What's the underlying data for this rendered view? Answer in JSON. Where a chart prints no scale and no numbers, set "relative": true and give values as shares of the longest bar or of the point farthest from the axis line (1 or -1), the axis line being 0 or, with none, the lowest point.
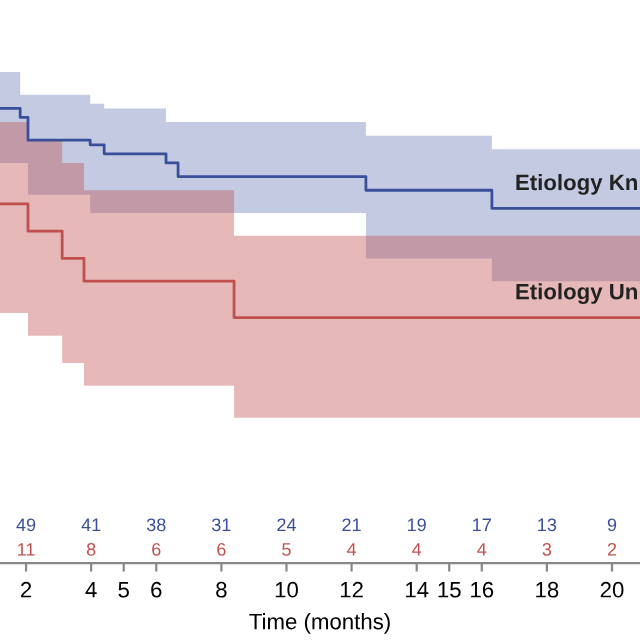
{
  "chart_data": {
    "type": "line",
    "relative": true,
    "xlabel": "Time (months)",
    "xlim": [
      1.2,
      20.86
    ],
    "xticks": [
      2,
      4,
      5,
      6,
      8,
      10,
      12,
      14,
      15,
      16,
      18,
      20
    ],
    "grid": false,
    "legend": false,
    "line_style": "solid",
    "marker": "none",
    "series": [
      {
        "name": "Etiology Kn",
        "color": "#3a4f9a",
        "x": [
          1.2,
          1.82,
          1.82,
          2.06,
          2.06,
          3.97,
          3.97,
          4.4,
          4.4,
          6.3,
          6.3,
          6.67,
          6.67,
          12.44,
          12.44,
          16.31,
          16.31,
          20.86
        ],
        "values": [
          1.0,
          1.0,
          0.98,
          0.98,
          0.93,
          0.93,
          0.92,
          0.92,
          0.9,
          0.9,
          0.88,
          0.88,
          0.85,
          0.85,
          0.82,
          0.82,
          0.78,
          0.78
        ],
        "lower": [
          0.88,
          0.88,
          0.88,
          0.88,
          0.81,
          0.81,
          0.77,
          0.77,
          0.77,
          0.77,
          0.77,
          0.77,
          0.77,
          0.77,
          0.67,
          0.67,
          0.62,
          0.62
        ],
        "upper": [
          1.08,
          1.08,
          1.03,
          1.03,
          1.03,
          1.03,
          1.01,
          1.01,
          1.0,
          1.0,
          0.97,
          0.97,
          0.97,
          0.97,
          0.94,
          0.94,
          0.91,
          0.91
        ]
      },
      {
        "name": "Etiology Un",
        "color": "#c0504d",
        "x": [
          1.2,
          2.06,
          2.06,
          3.11,
          3.11,
          3.78,
          3.78,
          8.39,
          8.39,
          20.86
        ],
        "values": [
          0.79,
          0.79,
          0.73,
          0.73,
          0.67,
          0.67,
          0.62,
          0.62,
          0.54,
          0.54
        ],
        "lower": [
          0.55,
          0.55,
          0.5,
          0.5,
          0.44,
          0.44,
          0.39,
          0.39,
          0.32,
          0.32
        ],
        "upper": [
          0.97,
          0.97,
          0.93,
          0.93,
          0.88,
          0.88,
          0.82,
          0.82,
          0.72,
          0.72
        ]
      }
    ],
    "annotations": [
      "49",
      "41",
      "38",
      "31",
      "24",
      "21",
      "19",
      "17",
      "13",
      "9",
      "11",
      "8",
      "6",
      "6",
      "5",
      "4",
      "4",
      "4",
      "3",
      "2"
    ]
  }
}
